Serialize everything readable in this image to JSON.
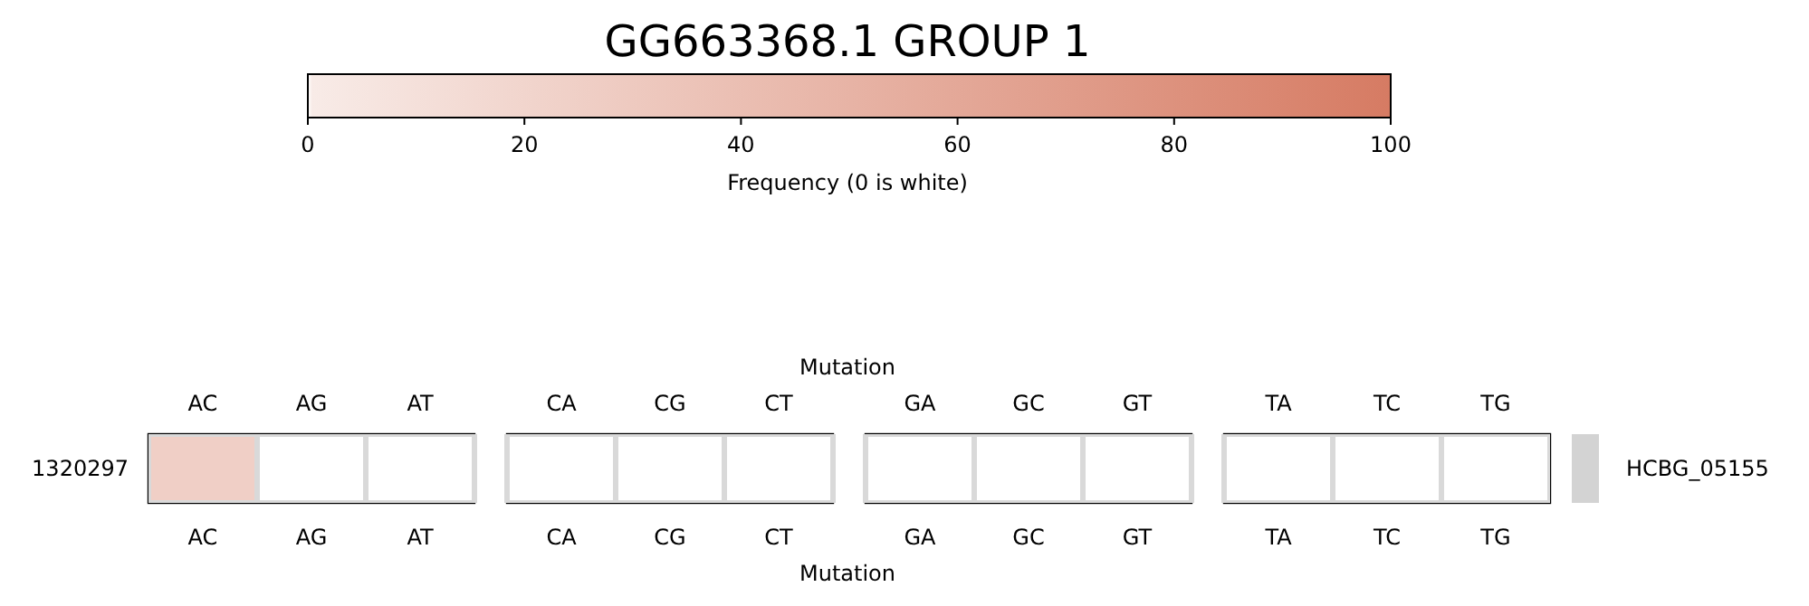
{
  "chart_data": {
    "type": "heatmap",
    "title": "GG663368.1 GROUP 1",
    "xlabel": "Mutation",
    "x2label": "Mutation",
    "clabel": "Frequency (0 is white)",
    "clim": [
      0,
      100
    ],
    "cticks": [
      0,
      20,
      40,
      60,
      80,
      100
    ],
    "categories": [
      "AC",
      "AG",
      "AT",
      "CA",
      "CG",
      "CT",
      "GA",
      "GC",
      "GT",
      "TA",
      "TC",
      "TG"
    ],
    "y_categories": [
      "1320297"
    ],
    "y2_categories": [
      "HCBG_05155"
    ],
    "cells": [
      [
        25,
        0,
        0,
        0,
        0,
        0,
        0,
        0,
        0,
        0,
        0,
        0
      ]
    ]
  }
}
